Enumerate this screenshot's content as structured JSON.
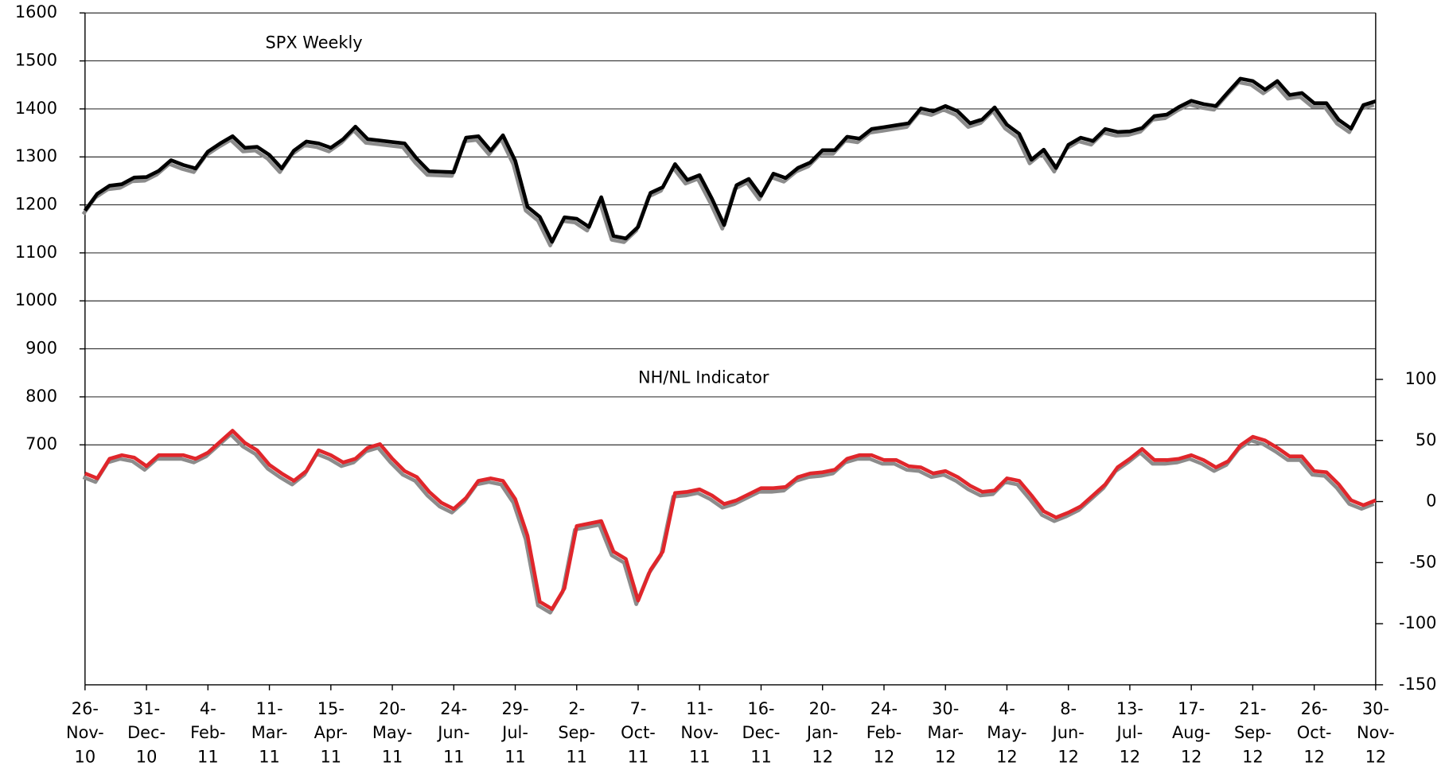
{
  "chart_data": {
    "type": "line",
    "annotations": [
      "SPX Weekly",
      "NH/NL Indicator"
    ],
    "categories": [
      "26-Nov-10",
      null,
      null,
      null,
      null,
      "31-Dec-10",
      null,
      null,
      null,
      null,
      "4-Feb-11",
      null,
      null,
      null,
      null,
      "11-Mar-11",
      null,
      null,
      null,
      null,
      "15-Apr-11",
      null,
      null,
      null,
      null,
      "20-May-11",
      null,
      null,
      null,
      null,
      "24-Jun-11",
      null,
      null,
      null,
      null,
      "29-Jul-11",
      null,
      null,
      null,
      null,
      "2-Sep-11",
      null,
      null,
      null,
      null,
      "7-Oct-11",
      null,
      null,
      null,
      null,
      "11-Nov-11",
      null,
      null,
      null,
      null,
      "16-Dec-11",
      null,
      null,
      null,
      null,
      "20-Jan-12",
      null,
      null,
      null,
      null,
      "24-Feb-12",
      null,
      null,
      null,
      null,
      "30-Mar-12",
      null,
      null,
      null,
      null,
      "4-May-12",
      null,
      null,
      null,
      null,
      "8-Jun-12",
      null,
      null,
      null,
      null,
      "13-Jul-12",
      null,
      null,
      null,
      null,
      "17-Aug-12",
      null,
      null,
      null,
      null,
      "21-Sep-12",
      null,
      null,
      null,
      null,
      "26-Oct-12",
      null,
      null,
      null,
      null,
      "30-Nov-12"
    ],
    "series": [
      {
        "name": "SPX Weekly",
        "color": "#000000",
        "axis": "y",
        "values": [
          1188,
          1223,
          1240,
          1243,
          1257,
          1258,
          1271,
          1293,
          1283,
          1276,
          1311,
          1328,
          1343,
          1319,
          1321,
          1304,
          1276,
          1313,
          1332,
          1328,
          1319,
          1337,
          1363,
          1337,
          1334,
          1331,
          1328,
          1296,
          1270,
          1269,
          1268,
          1340,
          1343,
          1313,
          1345,
          1292,
          1196,
          1175,
          1123,
          1174,
          1171,
          1154,
          1216,
          1135,
          1130,
          1154,
          1225,
          1237,
          1285,
          1252,
          1262,
          1213,
          1158,
          1241,
          1254,
          1219,
          1265,
          1256,
          1277,
          1288,
          1314,
          1314,
          1342,
          1338,
          1358,
          1362,
          1366,
          1370,
          1401,
          1395,
          1406,
          1395,
          1370,
          1378,
          1403,
          1367,
          1348,
          1294,
          1315,
          1277,
          1325,
          1340,
          1333,
          1358,
          1352,
          1353,
          1360,
          1385,
          1388,
          1404,
          1417,
          1410,
          1406,
          1435,
          1463,
          1458,
          1440,
          1458,
          1429,
          1433,
          1412,
          1412,
          1377,
          1359,
          1408,
          1416
        ]
      },
      {
        "name": "NH/NL Indicator",
        "color": "#e0262b",
        "axis": "y2",
        "values": [
          23,
          19,
          35,
          38,
          36,
          29,
          38,
          38,
          38,
          35,
          40,
          49,
          58,
          48,
          42,
          30,
          23,
          17,
          25,
          42,
          38,
          32,
          35,
          44,
          47,
          35,
          25,
          20,
          8,
          -1,
          -6,
          3,
          17,
          19,
          17,
          2,
          -28,
          -82,
          -88,
          -71,
          -20,
          -18,
          -16,
          -41,
          -47,
          -81,
          -56,
          -41,
          7,
          8,
          10,
          5,
          -2,
          1,
          6,
          11,
          11,
          12,
          20,
          23,
          24,
          26,
          35,
          38,
          38,
          34,
          34,
          29,
          28,
          23,
          25,
          20,
          13,
          8,
          9,
          19,
          17,
          5,
          -8,
          -13,
          -9,
          -4,
          5,
          14,
          28,
          35,
          43,
          34,
          34,
          35,
          38,
          34,
          28,
          33,
          46,
          53,
          50,
          44,
          37,
          37,
          25,
          24,
          14,
          1,
          -3,
          1
        ]
      }
    ],
    "ylim": [
      200,
      1600
    ],
    "yticks": [
      700,
      800,
      900,
      1000,
      1100,
      1200,
      1300,
      1400,
      1500,
      1600
    ],
    "y2lim": [
      -150,
      400
    ],
    "y2ticks": [
      -150,
      -100,
      -50,
      0,
      50,
      100
    ],
    "grid": true
  }
}
